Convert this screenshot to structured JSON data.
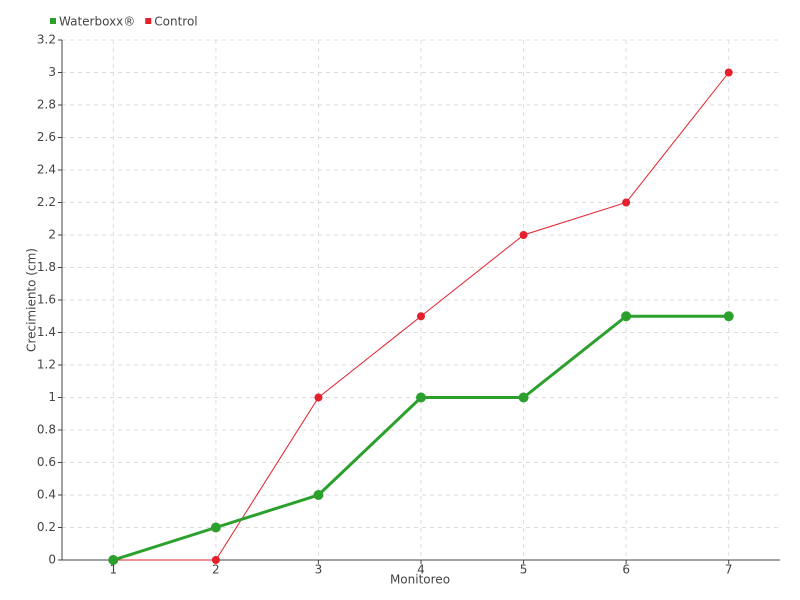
{
  "chart_data": {
    "type": "line",
    "x_label": "Monitoreo",
    "y_label": "Crecimiento (cm)",
    "categories": [
      "1",
      "2",
      "3",
      "4",
      "5",
      "6",
      "7"
    ],
    "series": [
      {
        "name": "Waterboxx®",
        "color": "#2ca02c",
        "values": [
          0,
          0.2,
          0.4,
          1,
          1,
          1.5,
          1.5
        ]
      },
      {
        "name": "Control",
        "color": "#e3202b",
        "values": [
          0,
          0,
          1,
          1.5,
          2,
          2.2,
          3
        ]
      }
    ],
    "ylim": [
      0,
      3.2
    ],
    "yticks": [
      0,
      0.2,
      0.4,
      0.6,
      0.8,
      1,
      1.2,
      1.4,
      1.6,
      1.8,
      2,
      2.2,
      2.4,
      2.6,
      2.8,
      3,
      3.2
    ],
    "grid": true,
    "legend": "top-left"
  }
}
